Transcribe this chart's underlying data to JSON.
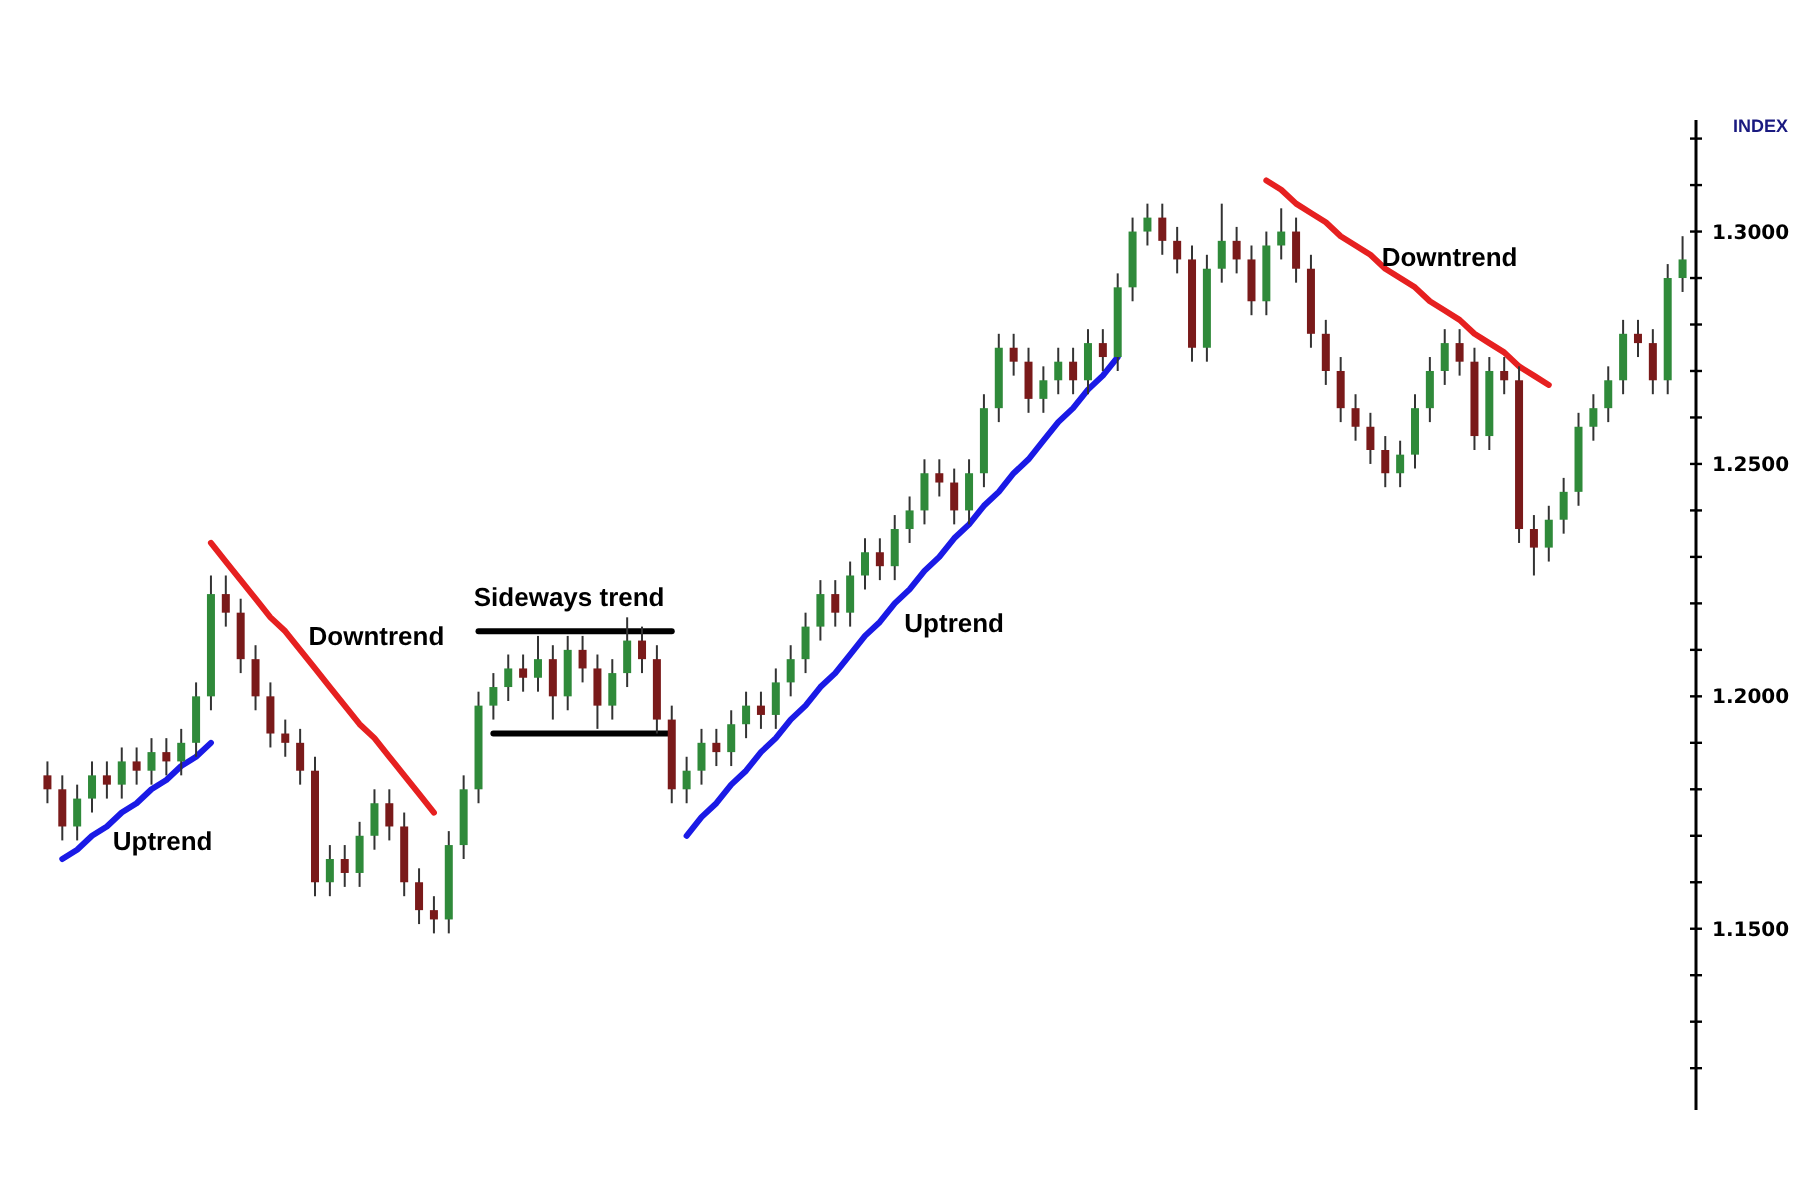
{
  "chart_data": {
    "type": "candlestick",
    "categories": [
      null,
      null,
      null,
      null,
      null,
      null,
      null,
      null,
      null,
      null,
      null,
      null,
      null,
      null,
      null,
      null,
      null,
      null,
      null,
      null,
      null,
      null,
      null,
      null,
      null,
      null,
      null,
      null,
      null,
      null,
      null,
      null,
      null,
      null,
      null,
      null,
      null,
      null,
      null,
      null,
      null,
      null,
      null,
      null,
      null,
      null,
      null,
      null,
      null,
      null,
      null,
      null,
      null,
      null,
      null,
      null,
      null,
      null,
      null,
      null,
      null,
      null,
      null,
      null,
      null,
      null,
      null,
      null,
      null,
      null,
      null,
      null,
      null,
      null,
      null,
      null,
      null,
      null,
      null,
      null,
      null,
      null,
      null,
      null,
      null,
      null,
      null,
      null,
      null,
      null,
      null,
      null,
      null,
      null,
      null,
      null,
      null,
      null,
      null,
      null,
      null,
      null,
      null,
      null,
      null,
      null,
      null,
      null,
      null,
      null,
      null
    ],
    "ohlc": [
      [
        1.183,
        1.186,
        1.177,
        1.18
      ],
      [
        1.18,
        1.183,
        1.169,
        1.172
      ],
      [
        1.172,
        1.181,
        1.169,
        1.178
      ],
      [
        1.178,
        1.186,
        1.175,
        1.183
      ],
      [
        1.183,
        1.186,
        1.178,
        1.181
      ],
      [
        1.181,
        1.189,
        1.178,
        1.186
      ],
      [
        1.186,
        1.189,
        1.181,
        1.184
      ],
      [
        1.184,
        1.191,
        1.181,
        1.188
      ],
      [
        1.188,
        1.191,
        1.183,
        1.186
      ],
      [
        1.186,
        1.193,
        1.183,
        1.19
      ],
      [
        1.19,
        1.203,
        1.187,
        1.2
      ],
      [
        1.2,
        1.226,
        1.197,
        1.222
      ],
      [
        1.222,
        1.226,
        1.215,
        1.218
      ],
      [
        1.218,
        1.221,
        1.205,
        1.208
      ],
      [
        1.208,
        1.211,
        1.197,
        1.2
      ],
      [
        1.2,
        1.203,
        1.189,
        1.192
      ],
      [
        1.192,
        1.195,
        1.187,
        1.19
      ],
      [
        1.19,
        1.193,
        1.181,
        1.184
      ],
      [
        1.184,
        1.187,
        1.157,
        1.16
      ],
      [
        1.16,
        1.168,
        1.157,
        1.165
      ],
      [
        1.165,
        1.168,
        1.159,
        1.162
      ],
      [
        1.162,
        1.173,
        1.159,
        1.17
      ],
      [
        1.17,
        1.18,
        1.167,
        1.177
      ],
      [
        1.177,
        1.18,
        1.169,
        1.172
      ],
      [
        1.172,
        1.175,
        1.157,
        1.16
      ],
      [
        1.16,
        1.163,
        1.151,
        1.154
      ],
      [
        1.154,
        1.157,
        1.149,
        1.152
      ],
      [
        1.152,
        1.171,
        1.149,
        1.168
      ],
      [
        1.168,
        1.183,
        1.165,
        1.18
      ],
      [
        1.18,
        1.201,
        1.177,
        1.198
      ],
      [
        1.198,
        1.205,
        1.195,
        1.202
      ],
      [
        1.202,
        1.209,
        1.199,
        1.206
      ],
      [
        1.206,
        1.209,
        1.201,
        1.204
      ],
      [
        1.204,
        1.213,
        1.201,
        1.208
      ],
      [
        1.208,
        1.211,
        1.195,
        1.2
      ],
      [
        1.2,
        1.213,
        1.197,
        1.21
      ],
      [
        1.21,
        1.213,
        1.203,
        1.206
      ],
      [
        1.206,
        1.209,
        1.193,
        1.198
      ],
      [
        1.198,
        1.208,
        1.195,
        1.205
      ],
      [
        1.205,
        1.217,
        1.202,
        1.212
      ],
      [
        1.212,
        1.215,
        1.205,
        1.208
      ],
      [
        1.208,
        1.211,
        1.192,
        1.195
      ],
      [
        1.195,
        1.198,
        1.177,
        1.18
      ],
      [
        1.18,
        1.187,
        1.177,
        1.184
      ],
      [
        1.184,
        1.193,
        1.181,
        1.19
      ],
      [
        1.19,
        1.193,
        1.185,
        1.188
      ],
      [
        1.188,
        1.197,
        1.185,
        1.194
      ],
      [
        1.194,
        1.201,
        1.191,
        1.198
      ],
      [
        1.198,
        1.201,
        1.193,
        1.196
      ],
      [
        1.196,
        1.206,
        1.193,
        1.203
      ],
      [
        1.203,
        1.211,
        1.2,
        1.208
      ],
      [
        1.208,
        1.218,
        1.205,
        1.215
      ],
      [
        1.215,
        1.225,
        1.212,
        1.222
      ],
      [
        1.222,
        1.225,
        1.215,
        1.218
      ],
      [
        1.218,
        1.229,
        1.215,
        1.226
      ],
      [
        1.226,
        1.234,
        1.223,
        1.231
      ],
      [
        1.231,
        1.234,
        1.225,
        1.228
      ],
      [
        1.228,
        1.239,
        1.225,
        1.236
      ],
      [
        1.236,
        1.243,
        1.233,
        1.24
      ],
      [
        1.24,
        1.251,
        1.237,
        1.248
      ],
      [
        1.248,
        1.251,
        1.243,
        1.246
      ],
      [
        1.246,
        1.249,
        1.237,
        1.24
      ],
      [
        1.24,
        1.251,
        1.237,
        1.248
      ],
      [
        1.248,
        1.265,
        1.245,
        1.262
      ],
      [
        1.262,
        1.278,
        1.259,
        1.275
      ],
      [
        1.275,
        1.278,
        1.269,
        1.272
      ],
      [
        1.272,
        1.275,
        1.261,
        1.264
      ],
      [
        1.264,
        1.271,
        1.261,
        1.268
      ],
      [
        1.268,
        1.275,
        1.265,
        1.272
      ],
      [
        1.272,
        1.275,
        1.265,
        1.268
      ],
      [
        1.268,
        1.279,
        1.265,
        1.276
      ],
      [
        1.276,
        1.279,
        1.27,
        1.273
      ],
      [
        1.273,
        1.291,
        1.27,
        1.288
      ],
      [
        1.288,
        1.303,
        1.285,
        1.3
      ],
      [
        1.3,
        1.306,
        1.297,
        1.303
      ],
      [
        1.303,
        1.306,
        1.295,
        1.298
      ],
      [
        1.298,
        1.301,
        1.291,
        1.294
      ],
      [
        1.294,
        1.297,
        1.272,
        1.275
      ],
      [
        1.275,
        1.295,
        1.272,
        1.292
      ],
      [
        1.292,
        1.306,
        1.289,
        1.298
      ],
      [
        1.298,
        1.301,
        1.291,
        1.294
      ],
      [
        1.294,
        1.297,
        1.282,
        1.285
      ],
      [
        1.285,
        1.3,
        1.282,
        1.297
      ],
      [
        1.297,
        1.305,
        1.294,
        1.3
      ],
      [
        1.3,
        1.303,
        1.289,
        1.292
      ],
      [
        1.292,
        1.295,
        1.275,
        1.278
      ],
      [
        1.278,
        1.281,
        1.267,
        1.27
      ],
      [
        1.27,
        1.273,
        1.259,
        1.262
      ],
      [
        1.262,
        1.265,
        1.255,
        1.258
      ],
      [
        1.258,
        1.261,
        1.25,
        1.253
      ],
      [
        1.253,
        1.256,
        1.245,
        1.248
      ],
      [
        1.248,
        1.255,
        1.245,
        1.252
      ],
      [
        1.252,
        1.265,
        1.249,
        1.262
      ],
      [
        1.262,
        1.273,
        1.259,
        1.27
      ],
      [
        1.27,
        1.279,
        1.267,
        1.276
      ],
      [
        1.276,
        1.279,
        1.269,
        1.272
      ],
      [
        1.272,
        1.275,
        1.253,
        1.256
      ],
      [
        1.256,
        1.273,
        1.253,
        1.27
      ],
      [
        1.27,
        1.273,
        1.265,
        1.268
      ],
      [
        1.268,
        1.271,
        1.233,
        1.236
      ],
      [
        1.236,
        1.239,
        1.226,
        1.232
      ],
      [
        1.232,
        1.241,
        1.229,
        1.238
      ],
      [
        1.238,
        1.247,
        1.235,
        1.244
      ],
      [
        1.244,
        1.261,
        1.241,
        1.258
      ],
      [
        1.258,
        1.265,
        1.255,
        1.262
      ],
      [
        1.262,
        1.271,
        1.259,
        1.268
      ],
      [
        1.268,
        1.281,
        1.265,
        1.278
      ],
      [
        1.278,
        1.281,
        1.273,
        1.276
      ],
      [
        1.276,
        1.279,
        1.265,
        1.268
      ],
      [
        1.268,
        1.293,
        1.265,
        1.29
      ],
      [
        1.29,
        1.299,
        1.287,
        1.294
      ]
    ],
    "series": [
      {
        "type": "line",
        "color": "#1a1ae6",
        "values": [
          null,
          1.165,
          1.167,
          1.17,
          1.172,
          1.175,
          1.177,
          1.18,
          1.182,
          1.185,
          1.187,
          1.19,
          null,
          null,
          null,
          null,
          null,
          null,
          null,
          null,
          null,
          null,
          null,
          null,
          null,
          null,
          null,
          null,
          null,
          null,
          null,
          null,
          null,
          null,
          null,
          null,
          null,
          null,
          null,
          null,
          null,
          null,
          null,
          null,
          null,
          null,
          null,
          null,
          null,
          null,
          null,
          null,
          null,
          null,
          null,
          null,
          null,
          null,
          null,
          null,
          null,
          null,
          null,
          null,
          null,
          null,
          null,
          null,
          null,
          null,
          null,
          null,
          null,
          null,
          null,
          null,
          null,
          null,
          null,
          null,
          null,
          null,
          null,
          null,
          null,
          null,
          null,
          null,
          null,
          null,
          null,
          null,
          null,
          null,
          null,
          null,
          null,
          null,
          null,
          null,
          null,
          null,
          null,
          null,
          null,
          null,
          null,
          null,
          null,
          null,
          null
        ]
      },
      {
        "type": "line",
        "color": "#e62020",
        "values": [
          null,
          null,
          null,
          null,
          null,
          null,
          null,
          null,
          null,
          null,
          null,
          1.233,
          1.229,
          1.225,
          1.221,
          1.217,
          1.214,
          1.21,
          1.206,
          1.202,
          1.198,
          1.194,
          1.191,
          1.187,
          1.183,
          1.179,
          1.175,
          null,
          null,
          null,
          null,
          null,
          null,
          null,
          null,
          null,
          null,
          null,
          null,
          null,
          null,
          null,
          null,
          null,
          null,
          null,
          null,
          null,
          null,
          null,
          null,
          null,
          null,
          null,
          null,
          null,
          null,
          null,
          null,
          null,
          null,
          null,
          null,
          null,
          null,
          null,
          null,
          null,
          null,
          null,
          null,
          null,
          null,
          null,
          null,
          null,
          null,
          null,
          null,
          null,
          null,
          null,
          null,
          null,
          null,
          null,
          null,
          null,
          null,
          null,
          null,
          null,
          null,
          null,
          null,
          null,
          null,
          null,
          null,
          null,
          null,
          null,
          null,
          null,
          null,
          null,
          null,
          null,
          null,
          null,
          null
        ]
      },
      {
        "type": "line",
        "color": "#000000",
        "values": [
          null,
          null,
          null,
          null,
          null,
          null,
          null,
          null,
          null,
          null,
          null,
          null,
          null,
          null,
          null,
          null,
          null,
          null,
          null,
          null,
          null,
          null,
          null,
          null,
          null,
          null,
          null,
          null,
          null,
          1.214,
          1.214,
          1.214,
          1.214,
          1.214,
          1.214,
          1.214,
          1.214,
          1.214,
          1.214,
          1.214,
          1.214,
          1.214,
          1.214,
          null,
          null,
          null,
          null,
          null,
          null,
          null,
          null,
          null,
          null,
          null,
          null,
          null,
          null,
          null,
          null,
          null,
          null,
          null,
          null,
          null,
          null,
          null,
          null,
          null,
          null,
          null,
          null,
          null,
          null,
          null,
          null,
          null,
          null,
          null,
          null,
          null,
          null,
          null,
          null,
          null,
          null,
          null,
          null,
          null,
          null,
          null,
          null,
          null,
          null,
          null,
          null,
          null,
          null,
          null,
          null,
          null,
          null,
          null,
          null,
          null,
          null,
          null,
          null,
          null,
          null,
          null,
          null
        ]
      },
      {
        "type": "line",
        "color": "#000000",
        "values": [
          null,
          null,
          null,
          null,
          null,
          null,
          null,
          null,
          null,
          null,
          null,
          null,
          null,
          null,
          null,
          null,
          null,
          null,
          null,
          null,
          null,
          null,
          null,
          null,
          null,
          null,
          null,
          null,
          null,
          null,
          1.192,
          1.192,
          1.192,
          1.192,
          1.192,
          1.192,
          1.192,
          1.192,
          1.192,
          1.192,
          1.192,
          1.192,
          1.192,
          null,
          null,
          null,
          null,
          null,
          null,
          null,
          null,
          null,
          null,
          null,
          null,
          null,
          null,
          null,
          null,
          null,
          null,
          null,
          null,
          null,
          null,
          null,
          null,
          null,
          null,
          null,
          null,
          null,
          null,
          null,
          null,
          null,
          null,
          null,
          null,
          null,
          null,
          null,
          null,
          null,
          null,
          null,
          null,
          null,
          null,
          null,
          null,
          null,
          null,
          null,
          null,
          null,
          null,
          null,
          null,
          null,
          null,
          null,
          null,
          null,
          null,
          null,
          null,
          null,
          null,
          null,
          null
        ]
      },
      {
        "type": "line",
        "color": "#1a1ae6",
        "values": [
          null,
          null,
          null,
          null,
          null,
          null,
          null,
          null,
          null,
          null,
          null,
          null,
          null,
          null,
          null,
          null,
          null,
          null,
          null,
          null,
          null,
          null,
          null,
          null,
          null,
          null,
          null,
          null,
          null,
          null,
          null,
          null,
          null,
          null,
          null,
          null,
          null,
          null,
          null,
          null,
          null,
          null,
          null,
          1.17,
          1.174,
          1.177,
          1.181,
          1.184,
          1.188,
          1.191,
          1.195,
          1.198,
          1.202,
          1.205,
          1.209,
          1.213,
          1.216,
          1.22,
          1.223,
          1.227,
          1.23,
          1.234,
          1.237,
          1.241,
          1.244,
          1.248,
          1.251,
          1.255,
          1.259,
          1.262,
          1.266,
          1.269,
          1.273,
          null,
          null,
          null,
          null,
          null,
          null,
          null,
          null,
          null,
          null,
          null,
          null,
          null,
          null,
          null,
          null,
          null,
          null,
          null,
          null,
          null,
          null,
          null,
          null,
          null,
          null,
          null,
          null,
          null,
          null,
          null,
          null,
          null,
          null,
          null,
          null,
          null,
          null
        ]
      },
      {
        "type": "line",
        "color": "#e62020",
        "values": [
          null,
          null,
          null,
          null,
          null,
          null,
          null,
          null,
          null,
          null,
          null,
          null,
          null,
          null,
          null,
          null,
          null,
          null,
          null,
          null,
          null,
          null,
          null,
          null,
          null,
          null,
          null,
          null,
          null,
          null,
          null,
          null,
          null,
          null,
          null,
          null,
          null,
          null,
          null,
          null,
          null,
          null,
          null,
          null,
          null,
          null,
          null,
          null,
          null,
          null,
          null,
          null,
          null,
          null,
          null,
          null,
          null,
          null,
          null,
          null,
          null,
          null,
          null,
          null,
          null,
          null,
          null,
          null,
          null,
          null,
          null,
          null,
          null,
          null,
          null,
          null,
          null,
          null,
          null,
          null,
          null,
          null,
          1.311,
          1.309,
          1.306,
          1.304,
          1.302,
          1.299,
          1.297,
          1.295,
          1.292,
          1.29,
          1.288,
          1.285,
          1.283,
          1.281,
          1.278,
          1.276,
          1.274,
          1.271,
          1.269,
          1.267,
          null,
          null,
          null,
          null,
          null,
          null,
          null,
          null,
          null
        ]
      }
    ],
    "ylim": [
      1.111,
      1.324
    ],
    "yticks": [
      {
        "value": 1.12,
        "label": null
      },
      {
        "value": 1.13,
        "label": null
      },
      {
        "value": 1.14,
        "label": null
      },
      {
        "value": 1.15,
        "label": "1.1500"
      },
      {
        "value": 1.16,
        "label": null
      },
      {
        "value": 1.17,
        "label": null
      },
      {
        "value": 1.18,
        "label": null
      },
      {
        "value": 1.19,
        "label": null
      },
      {
        "value": 1.2,
        "label": "1.2000"
      },
      {
        "value": 1.21,
        "label": null
      },
      {
        "value": 1.22,
        "label": null
      },
      {
        "value": 1.23,
        "label": null
      },
      {
        "value": 1.24,
        "label": null
      },
      {
        "value": 1.25,
        "label": "1.2500"
      },
      {
        "value": 1.26,
        "label": null
      },
      {
        "value": 1.27,
        "label": null
      },
      {
        "value": 1.28,
        "label": null
      },
      {
        "value": 1.29,
        "label": null
      },
      {
        "value": 1.3,
        "label": "1.3000"
      },
      {
        "value": 1.31,
        "label": null
      },
      {
        "value": 1.32,
        "label": null
      }
    ],
    "tick_labels": "y",
    "annotations": [
      "Uptrend",
      "Downtrend",
      "Sideways trend",
      "Uptrend",
      "Downtrend",
      "INDEX"
    ]
  }
}
